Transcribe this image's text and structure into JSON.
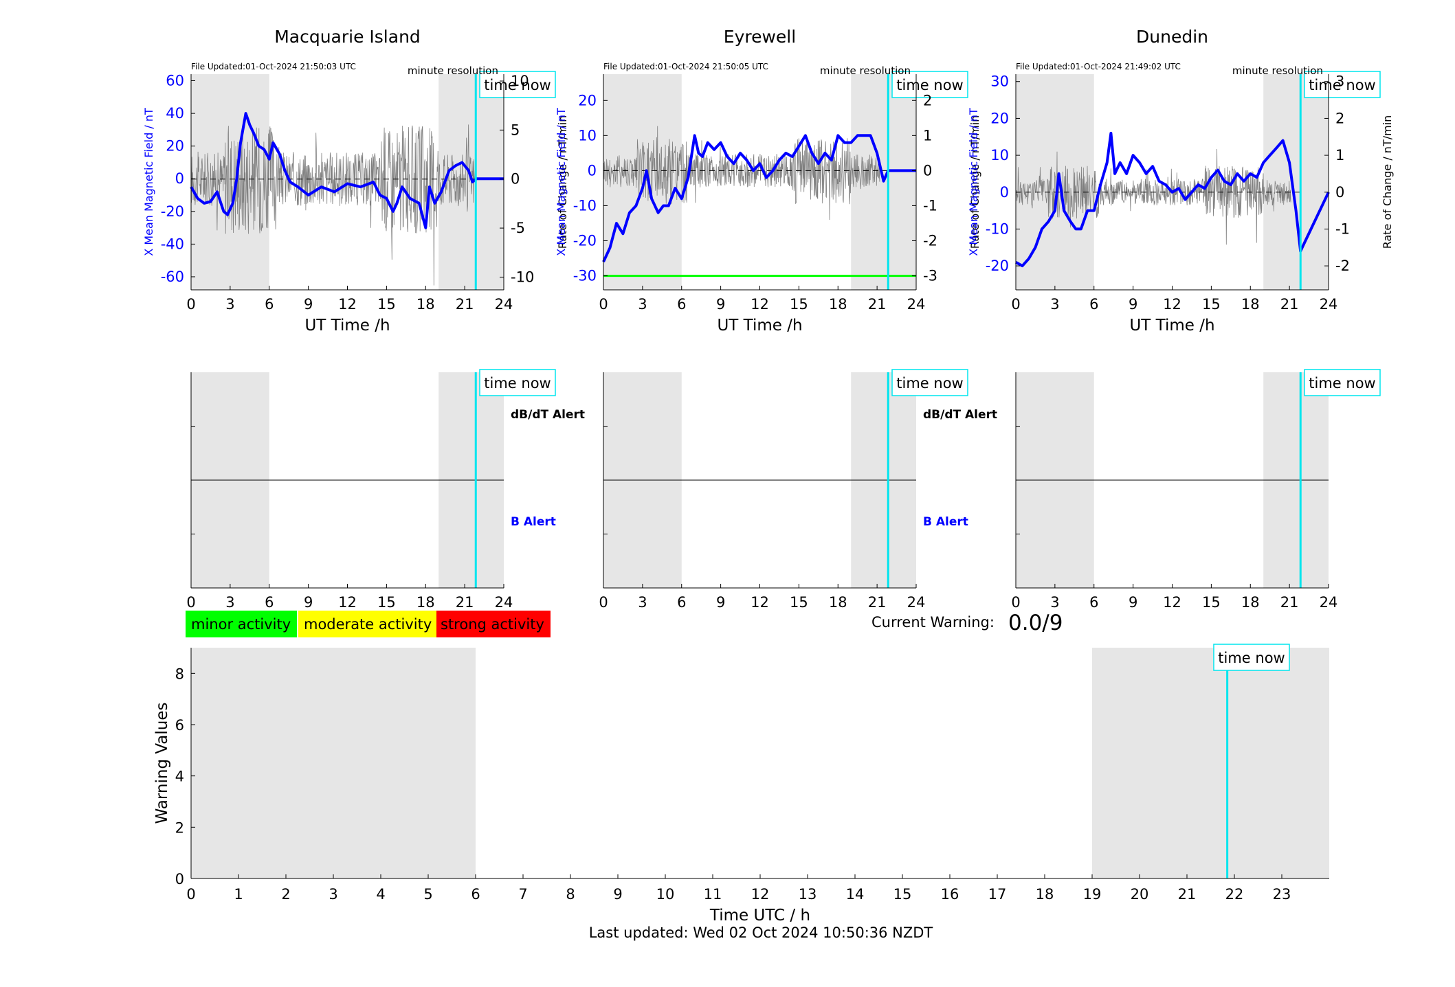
{
  "footer": {
    "last_updated": "Last updated: Wed 02 Oct 2024 10:50:36 NZDT"
  },
  "time_now_label": "time now",
  "minute_resolution": "minute resolution",
  "legend": [
    {
      "label": "minor activity",
      "color": "#00ff00"
    },
    {
      "label": "moderate activity",
      "color": "#ffff00"
    },
    {
      "label": "strong activity",
      "color": "#ff0000"
    }
  ],
  "current_warning": {
    "label": "Current Warning:",
    "value": "0.0/9"
  },
  "alert_labels": {
    "dbdt": "dB/dT Alert",
    "b": "B Alert"
  },
  "colors": {
    "x_field": "#0000ff",
    "rate": "#808080",
    "time_now": "#00e5ee",
    "shade": "#e6e6e6",
    "threshold": "#00ff00"
  },
  "chart_data": [
    {
      "type": "line",
      "title": "Macquarie Island",
      "file_updated": "File Updated:01-Oct-2024 21:50:03 UTC",
      "xlabel": "UT Time /h",
      "ylabel_left": "X Mean Magnetic Field / nT",
      "ylabel_right": "Rate of Change / nT/min",
      "xlim": [
        0,
        24
      ],
      "xticks": [
        0,
        3,
        6,
        9,
        12,
        15,
        18,
        21,
        24
      ],
      "ylim_left": [
        -68,
        64
      ],
      "yticks_left": [
        -60,
        -40,
        -20,
        0,
        20,
        40,
        60
      ],
      "ylim_right": [
        -11.3,
        10.7
      ],
      "yticks_right": [
        -10,
        -5,
        0,
        5,
        10
      ],
      "shaded_hours": [
        [
          0,
          6
        ],
        [
          19,
          24
        ]
      ],
      "time_now": 21.85,
      "series": [
        {
          "name": "X Mean Magnetic Field",
          "axis": "left",
          "color": "#0000ff",
          "x": [
            0,
            0.5,
            1,
            1.5,
            2,
            2.5,
            2.8,
            3.2,
            3.5,
            3.8,
            4.2,
            4.5,
            4.8,
            5.2,
            5.6,
            6,
            6.3,
            6.8,
            7.2,
            7.6,
            8.2,
            9,
            10,
            11,
            12,
            13,
            14,
            14.5,
            15,
            15.5,
            15.8,
            16.2,
            16.8,
            17.5,
            18,
            18.3,
            18.7,
            19.2,
            19.8,
            20.3,
            20.8,
            21.3,
            21.6,
            21.9,
            22.5,
            24
          ],
          "y": [
            -5,
            -12,
            -15,
            -14,
            -8,
            -20,
            -22,
            -15,
            0,
            22,
            40,
            33,
            28,
            20,
            18,
            12,
            22,
            15,
            5,
            -2,
            -5,
            -10,
            -5,
            -8,
            -3,
            -5,
            -2,
            -10,
            -12,
            -20,
            -15,
            -5,
            -12,
            -15,
            -30,
            -5,
            -15,
            -8,
            5,
            8,
            10,
            5,
            -2,
            0,
            0,
            0
          ]
        },
        {
          "name": "Rate of Change",
          "axis": "right",
          "color": "#808080",
          "noise_amplitude": 3.5,
          "x_range": [
            0,
            21.85
          ]
        }
      ]
    },
    {
      "type": "line",
      "title": "Eyrewell",
      "file_updated": "File Updated:01-Oct-2024 21:50:05 UTC",
      "xlabel": "UT Time /h",
      "ylabel_left": "X Mean Magnetic Field / nT",
      "ylabel_right": "Rate of Change / nT/min",
      "xlim": [
        0,
        24
      ],
      "xticks": [
        0,
        3,
        6,
        9,
        12,
        15,
        18,
        21,
        24
      ],
      "ylim_left": [
        -34,
        27.5
      ],
      "yticks_left": [
        -30,
        -20,
        -10,
        0,
        10,
        20
      ],
      "ylim_right": [
        -3.4,
        2.75
      ],
      "yticks_right": [
        -3,
        -2,
        -1,
        0,
        1,
        2
      ],
      "shaded_hours": [
        [
          0,
          6
        ],
        [
          19,
          24
        ]
      ],
      "time_now": 21.85,
      "threshold_line": -30,
      "series": [
        {
          "name": "X Mean Magnetic Field",
          "axis": "left",
          "color": "#0000ff",
          "x": [
            0,
            0.5,
            1,
            1.5,
            2,
            2.5,
            3,
            3.3,
            3.7,
            4.2,
            4.6,
            5,
            5.5,
            6,
            6.5,
            7,
            7.3,
            7.6,
            8,
            8.5,
            9,
            9.5,
            10,
            10.5,
            11,
            11.5,
            12,
            12.5,
            13,
            13.5,
            14,
            14.5,
            15,
            15.5,
            16,
            16.5,
            17,
            17.5,
            18,
            18.5,
            19,
            19.5,
            20,
            20.5,
            21,
            21.5,
            21.85,
            24
          ],
          "y": [
            -26,
            -22,
            -15,
            -18,
            -12,
            -10,
            -5,
            0,
            -8,
            -12,
            -10,
            -10,
            -5,
            -8,
            -2,
            10,
            5,
            4,
            8,
            6,
            8,
            4,
            2,
            5,
            3,
            0,
            2,
            -2,
            0,
            3,
            5,
            4,
            7,
            10,
            5,
            2,
            5,
            3,
            10,
            8,
            8,
            10,
            10,
            10,
            5,
            -3,
            0,
            0
          ]
        },
        {
          "name": "Rate of Change",
          "axis": "right",
          "color": "#808080",
          "noise_amplitude": 0.6,
          "x_range": [
            0,
            21.2
          ]
        }
      ]
    },
    {
      "type": "line",
      "title": "Dunedin",
      "file_updated": "File Updated:01-Oct-2024 21:49:02 UTC",
      "xlabel": "UT Time /h",
      "ylabel_left": "X Mean Magnetic Field / nT",
      "ylabel_right": "Rate of Change / nT/min",
      "xlim": [
        0,
        24
      ],
      "xticks": [
        0,
        3,
        6,
        9,
        12,
        15,
        18,
        21,
        24
      ],
      "ylim_left": [
        -26.5,
        32
      ],
      "yticks_left": [
        -20,
        -10,
        0,
        10,
        20,
        30
      ],
      "ylim_right": [
        -2.65,
        3.2
      ],
      "yticks_right": [
        -2,
        -1,
        0,
        1,
        2,
        3
      ],
      "shaded_hours": [
        [
          0,
          6
        ],
        [
          19,
          24
        ]
      ],
      "time_now": 21.85,
      "series": [
        {
          "name": "X Mean Magnetic Field",
          "axis": "left",
          "color": "#0000ff",
          "x": [
            0,
            0.5,
            1,
            1.5,
            2,
            2.5,
            3,
            3.3,
            3.7,
            4.2,
            4.6,
            5,
            5.5,
            6,
            6.5,
            7,
            7.3,
            7.6,
            8,
            8.5,
            9,
            9.5,
            10,
            10.5,
            11,
            11.5,
            12,
            12.5,
            13,
            13.5,
            14,
            14.5,
            15,
            15.5,
            16,
            16.5,
            17,
            17.5,
            18,
            18.5,
            19,
            19.5,
            20,
            20.5,
            21,
            21.5,
            21.85,
            24
          ],
          "y": [
            -19,
            -20,
            -18,
            -15,
            -10,
            -8,
            -5,
            5,
            -5,
            -8,
            -10,
            -10,
            -5,
            -5,
            2,
            8,
            16,
            5,
            8,
            5,
            10,
            8,
            5,
            7,
            3,
            2,
            0,
            1,
            -2,
            0,
            2,
            1,
            4,
            6,
            3,
            2,
            5,
            3,
            5,
            4,
            8,
            10,
            12,
            14,
            8,
            -5,
            -16,
            0
          ]
        },
        {
          "name": "Rate of Change",
          "axis": "right",
          "color": "#808080",
          "noise_amplitude": 0.45,
          "x_range": [
            0,
            21.1
          ]
        }
      ]
    },
    {
      "type": "line",
      "xlim": [
        0,
        24
      ],
      "xticks": [
        0,
        3,
        6,
        9,
        12,
        15,
        18,
        21,
        24
      ],
      "shaded_hours": [
        [
          0,
          6
        ],
        [
          19,
          24
        ]
      ],
      "time_now": 21.85,
      "alert_labels": [
        "dB/dT Alert",
        "B Alert"
      ],
      "series": []
    },
    {
      "type": "line",
      "xlim": [
        0,
        24
      ],
      "xticks": [
        0,
        3,
        6,
        9,
        12,
        15,
        18,
        21,
        24
      ],
      "shaded_hours": [
        [
          0,
          6
        ],
        [
          19,
          24
        ]
      ],
      "time_now": 21.85,
      "alert_labels": [
        "dB/dT Alert",
        "B Alert"
      ],
      "series": []
    },
    {
      "type": "line",
      "xlim": [
        0,
        24
      ],
      "xticks": [
        0,
        3,
        6,
        9,
        12,
        15,
        18,
        21,
        24
      ],
      "shaded_hours": [
        [
          0,
          6
        ],
        [
          19,
          24
        ]
      ],
      "time_now": 21.85,
      "series": []
    },
    {
      "type": "bar",
      "xlabel": "Time UTC / h",
      "ylabel": "Warning Values",
      "xlim": [
        0,
        24
      ],
      "xticks": [
        0,
        1,
        2,
        3,
        4,
        5,
        6,
        7,
        8,
        9,
        10,
        11,
        12,
        13,
        14,
        15,
        16,
        17,
        18,
        19,
        20,
        21,
        22,
        23
      ],
      "ylim": [
        0,
        9
      ],
      "yticks": [
        0,
        2,
        4,
        6,
        8
      ],
      "shaded_hours": [
        [
          0,
          6
        ],
        [
          19,
          24
        ]
      ],
      "time_now": 21.85,
      "values": []
    }
  ]
}
